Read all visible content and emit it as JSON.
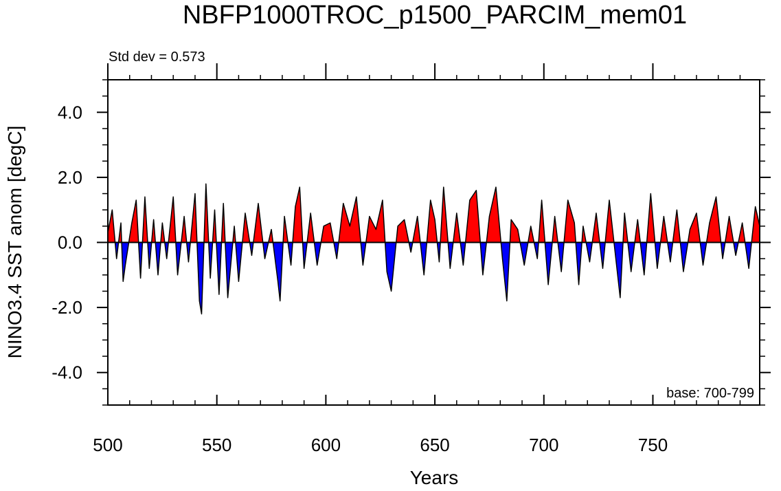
{
  "chart_data": {
    "type": "area",
    "title": "NBFP1000TROC_p1500_PARCIM_mem01",
    "left_note": "Std dev = 0.573",
    "right_note": "base: 700-799",
    "xlabel": "Years",
    "ylabel": "NINO3.4 SST anom [degC]",
    "xlim": [
      500,
      799
    ],
    "ylim": [
      -5,
      5
    ],
    "x_ticks": [
      500,
      550,
      600,
      650,
      700,
      750
    ],
    "x_tick_labels": [
      "500",
      "550",
      "600",
      "650",
      "700",
      "750"
    ],
    "x_minor_step": 10,
    "y_ticks": [
      -4,
      -2,
      0,
      2,
      4
    ],
    "y_tick_labels": [
      "-4.0",
      "-2.0",
      "0.0",
      "2.0",
      "4.0"
    ],
    "y_minor_step": 0.5,
    "positive_color": "#ff0000",
    "negative_color": "#0000ff",
    "line_color": "#000000",
    "x": [
      500,
      502,
      504,
      506,
      507,
      508,
      511,
      513,
      515,
      517,
      519,
      521,
      523,
      525,
      527,
      530,
      532,
      535,
      537,
      540,
      542,
      543,
      545,
      547,
      549,
      551,
      553,
      555,
      558,
      560,
      563,
      566,
      569,
      572,
      575,
      578,
      579,
      581,
      584,
      586,
      588,
      590,
      593,
      596,
      599,
      602,
      605,
      608,
      611,
      614,
      617,
      620,
      623,
      626,
      628,
      630,
      633,
      636,
      639,
      642,
      645,
      648,
      650,
      652,
      654,
      657,
      660,
      663,
      666,
      669,
      672,
      675,
      678,
      681,
      683,
      685,
      688,
      691,
      694,
      697,
      699,
      702,
      705,
      708,
      711,
      714,
      716,
      718,
      721,
      724,
      727,
      730,
      733,
      735,
      737,
      740,
      743,
      746,
      749,
      752,
      755,
      758,
      761,
      764,
      767,
      770,
      773,
      776,
      779,
      782,
      785,
      788,
      791,
      794,
      797,
      799
    ],
    "y": [
      0.3,
      1.0,
      -0.5,
      0.6,
      -1.2,
      -0.7,
      0.6,
      1.3,
      -1.1,
      1.4,
      -0.8,
      0.7,
      -1.0,
      0.6,
      -0.5,
      1.4,
      -1.0,
      0.8,
      -0.6,
      1.5,
      -1.8,
      -2.2,
      1.8,
      -1.1,
      1.0,
      -1.6,
      1.2,
      -1.7,
      0.5,
      -1.2,
      0.9,
      -0.4,
      1.2,
      -0.5,
      0.4,
      -1.2,
      -1.8,
      0.8,
      -0.7,
      1.1,
      1.7,
      -0.8,
      0.9,
      -0.7,
      0.5,
      0.6,
      -0.5,
      1.2,
      0.5,
      1.4,
      -0.7,
      0.8,
      0.4,
      1.3,
      -0.9,
      -1.5,
      0.5,
      0.7,
      -0.3,
      0.8,
      -1.0,
      1.3,
      0.7,
      -0.6,
      1.7,
      -0.8,
      0.9,
      -0.7,
      1.3,
      1.6,
      -1.0,
      0.8,
      1.7,
      -0.5,
      -1.8,
      0.7,
      0.4,
      -0.7,
      0.5,
      -0.5,
      1.3,
      -1.3,
      0.8,
      -0.9,
      1.3,
      0.6,
      -1.3,
      0.5,
      -0.6,
      0.9,
      -0.8,
      1.3,
      -0.5,
      -1.7,
      0.9,
      -0.9,
      0.7,
      -1.0,
      1.5,
      -0.8,
      0.8,
      -0.6,
      1.0,
      -0.9,
      0.4,
      0.9,
      -0.7,
      0.6,
      1.4,
      -0.5,
      0.8,
      -0.4,
      0.6,
      -0.8,
      1.1,
      0.5
    ]
  }
}
